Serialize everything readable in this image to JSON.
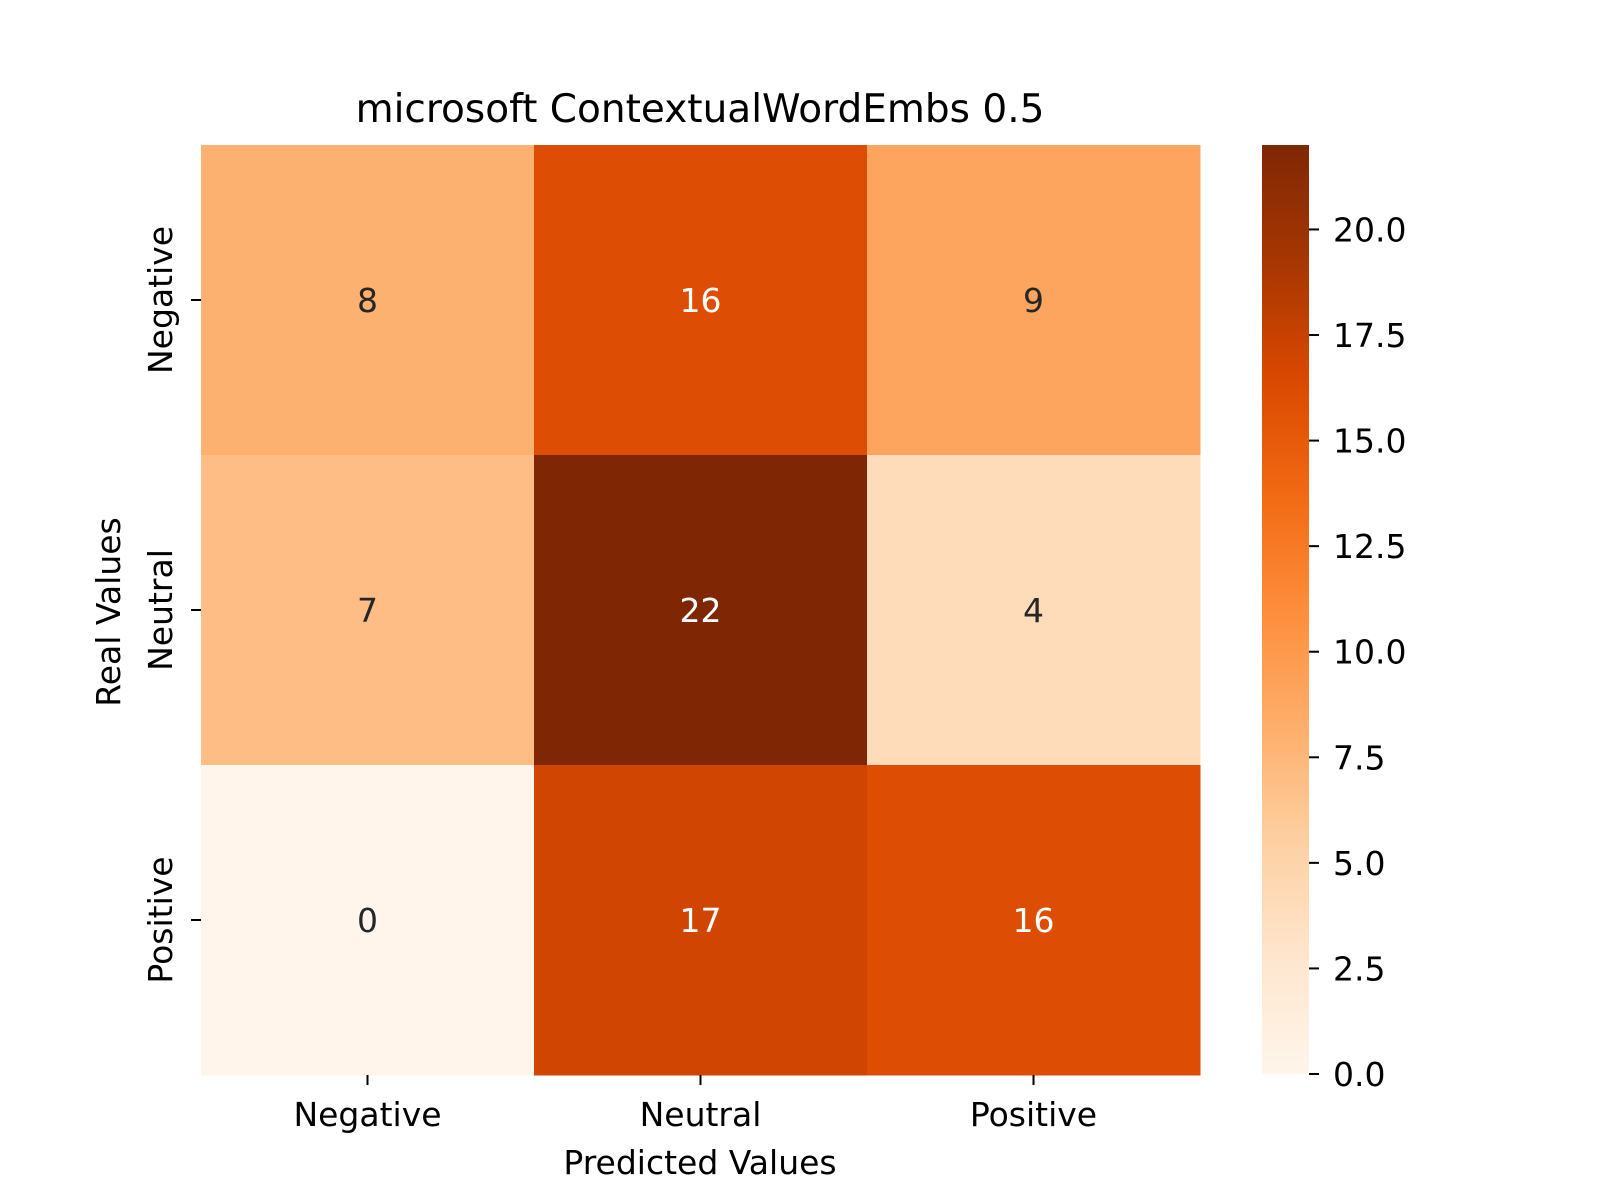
{
  "chart_data": {
    "type": "heatmap",
    "title": "microsoft ContextualWordEmbs 0.5",
    "xlabel": "Predicted Values",
    "ylabel": "Real Values",
    "x_categories": [
      "Negative",
      "Neutral",
      "Positive"
    ],
    "y_categories": [
      "Negative",
      "Neutral",
      "Positive"
    ],
    "values": [
      [
        8,
        16,
        9
      ],
      [
        7,
        22,
        4
      ],
      [
        0,
        17,
        16
      ]
    ],
    "colormap": "Oranges",
    "color_range": [
      0,
      22
    ],
    "colorbar_ticks": [
      "0.0",
      "2.5",
      "5.0",
      "7.5",
      "10.0",
      "12.5",
      "15.0",
      "17.5",
      "20.0"
    ],
    "grid": false,
    "annotated": true,
    "colors": {
      "low": "#fff5eb",
      "high": "#7f2704",
      "text_dark": "#262626",
      "text_light": "#ffffff"
    }
  }
}
